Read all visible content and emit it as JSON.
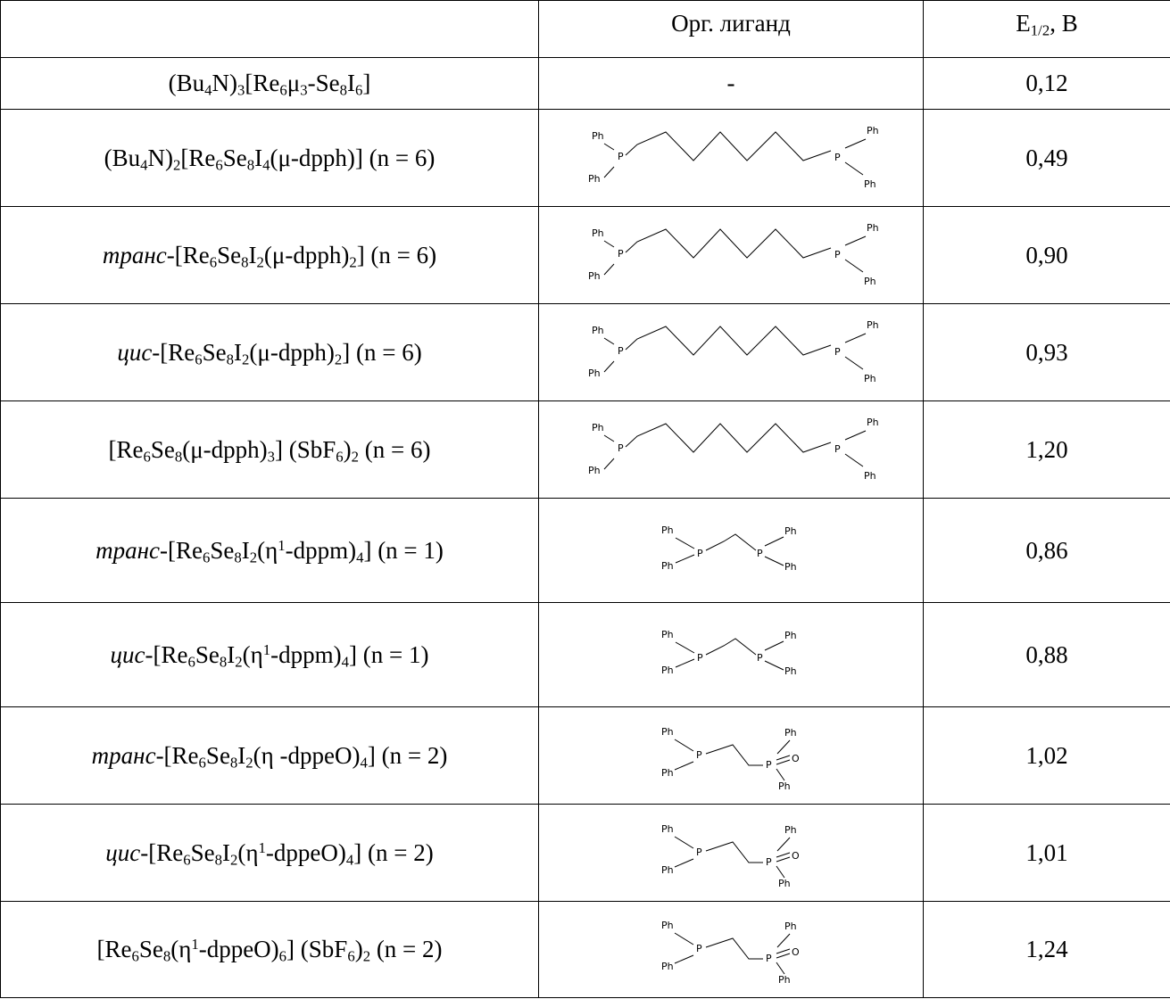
{
  "table": {
    "headers": {
      "compound": "",
      "ligand": "Орг. лиганд",
      "e_main": "E",
      "e_sub": "1/2",
      "e_unit": ", B"
    },
    "rows": [
      {
        "prefix": "",
        "formula": [
          [
            "t",
            "(Bu"
          ],
          [
            "sub",
            "4"
          ],
          [
            "t",
            "N)"
          ],
          [
            "sub",
            "3"
          ],
          [
            "t",
            "[Re"
          ],
          [
            "sub",
            "6"
          ],
          [
            "t",
            "μ"
          ],
          [
            "sub",
            "3"
          ],
          [
            "t",
            "-Se"
          ],
          [
            "sub",
            "8"
          ],
          [
            "t",
            "I"
          ],
          [
            "sub",
            "6"
          ],
          [
            "t",
            "]"
          ]
        ],
        "ligand_name": "",
        "ligand_text": "-",
        "value": "0,12"
      },
      {
        "prefix": "",
        "formula": [
          [
            "t",
            "(Bu"
          ],
          [
            "sub",
            "4"
          ],
          [
            "t",
            "N)"
          ],
          [
            "sub",
            "2"
          ],
          [
            "t",
            "[Re"
          ],
          [
            "sub",
            "6"
          ],
          [
            "t",
            "Se"
          ],
          [
            "sub",
            "8"
          ],
          [
            "t",
            "I"
          ],
          [
            "sub",
            "4"
          ],
          [
            "t",
            "(μ-dpph)] (n = 6)"
          ]
        ],
        "ligand_name": "dpph-hexyl-icon",
        "ligand_text": "",
        "value": "0,49"
      },
      {
        "prefix": "транс",
        "formula": [
          [
            "t",
            "-[Re"
          ],
          [
            "sub",
            "6"
          ],
          [
            "t",
            "Se"
          ],
          [
            "sub",
            "8"
          ],
          [
            "t",
            "I"
          ],
          [
            "sub",
            "2"
          ],
          [
            "t",
            "(μ-dpph)"
          ],
          [
            "sub",
            "2"
          ],
          [
            "t",
            "] (n = 6)"
          ]
        ],
        "ligand_name": "dpph-hexyl-icon",
        "ligand_text": "",
        "value": "0,90"
      },
      {
        "prefix": "цис",
        "formula": [
          [
            "t",
            "-[Re"
          ],
          [
            "sub",
            "6"
          ],
          [
            "t",
            "Se"
          ],
          [
            "sub",
            "8"
          ],
          [
            "t",
            "I"
          ],
          [
            "sub",
            "2"
          ],
          [
            "t",
            "(μ-dpph)"
          ],
          [
            "sub",
            "2"
          ],
          [
            "t",
            "] (n = 6)"
          ]
        ],
        "ligand_name": "dpph-hexyl-icon",
        "ligand_text": "",
        "value": "0,93"
      },
      {
        "prefix": "",
        "formula": [
          [
            "t",
            "[Re"
          ],
          [
            "sub",
            "6"
          ],
          [
            "t",
            "Se"
          ],
          [
            "sub",
            "8"
          ],
          [
            "t",
            "(μ-dpph)"
          ],
          [
            "sub",
            "3"
          ],
          [
            "t",
            "] (SbF"
          ],
          [
            "sub",
            "6"
          ],
          [
            "t",
            ")"
          ],
          [
            "sub",
            "2"
          ],
          [
            "t",
            " (n = 6)"
          ]
        ],
        "ligand_name": "dpph-hexyl-icon",
        "ligand_text": "",
        "value": "1,20"
      },
      {
        "prefix": "транс",
        "formula": [
          [
            "t",
            "-[Re"
          ],
          [
            "sub",
            "6"
          ],
          [
            "t",
            "Se"
          ],
          [
            "sub",
            "8"
          ],
          [
            "t",
            "I"
          ],
          [
            "sub",
            "2"
          ],
          [
            "t",
            "(η"
          ],
          [
            "sup",
            "1"
          ],
          [
            "t",
            "-dppm)"
          ],
          [
            "sub",
            "4"
          ],
          [
            "t",
            "] (n = 1)"
          ]
        ],
        "ligand_name": "dppm-methylene-icon",
        "ligand_text": "",
        "value": "0,86"
      },
      {
        "prefix": "цис",
        "formula": [
          [
            "t",
            "-[Re"
          ],
          [
            "sub",
            "6"
          ],
          [
            "t",
            "Se"
          ],
          [
            "sub",
            "8"
          ],
          [
            "t",
            "I"
          ],
          [
            "sub",
            "2"
          ],
          [
            "t",
            "(η"
          ],
          [
            "sup",
            "1"
          ],
          [
            "t",
            "-dppm)"
          ],
          [
            "sub",
            "4"
          ],
          [
            "t",
            "] (n = 1)"
          ]
        ],
        "ligand_name": "dppm-methylene-icon",
        "ligand_text": "",
        "value": "0,88"
      },
      {
        "prefix": "транс",
        "formula": [
          [
            "t",
            "-[Re"
          ],
          [
            "sub",
            "6"
          ],
          [
            "t",
            "Se"
          ],
          [
            "sub",
            "8"
          ],
          [
            "t",
            "I"
          ],
          [
            "sub",
            "2"
          ],
          [
            "t",
            "(η -dppeO)"
          ],
          [
            "sub",
            "4"
          ],
          [
            "t",
            "] (n = 2)"
          ]
        ],
        "ligand_name": "dppeO-ethylene-oxide-icon",
        "ligand_text": "",
        "value": "1,02"
      },
      {
        "prefix": "цис",
        "formula": [
          [
            "t",
            "-[Re"
          ],
          [
            "sub",
            "6"
          ],
          [
            "t",
            "Se"
          ],
          [
            "sub",
            "8"
          ],
          [
            "t",
            "I"
          ],
          [
            "sub",
            "2"
          ],
          [
            "t",
            "(η"
          ],
          [
            "sup",
            "1"
          ],
          [
            "t",
            "-dppeO)"
          ],
          [
            "sub",
            "4"
          ],
          [
            "t",
            "] (n = 2)"
          ]
        ],
        "ligand_name": "dppeO-ethylene-oxide-icon",
        "ligand_text": "",
        "value": "1,01"
      },
      {
        "prefix": "",
        "formula": [
          [
            "t",
            "[Re"
          ],
          [
            "sub",
            "6"
          ],
          [
            "t",
            "Se"
          ],
          [
            "sub",
            "8"
          ],
          [
            "t",
            "(η"
          ],
          [
            "sup",
            "1"
          ],
          [
            "t",
            "-dppeO)"
          ],
          [
            "sub",
            "6"
          ],
          [
            "t",
            "] (SbF"
          ],
          [
            "sub",
            "6"
          ],
          [
            "t",
            ")"
          ],
          [
            "sub",
            "2"
          ],
          [
            "t",
            " (n = 2)"
          ]
        ],
        "ligand_name": "dppeO-ethylene-oxide-icon",
        "ligand_text": "",
        "value": "1,24"
      }
    ]
  },
  "structure_labels": {
    "ph": "Ph",
    "p": "P",
    "o": "O"
  }
}
